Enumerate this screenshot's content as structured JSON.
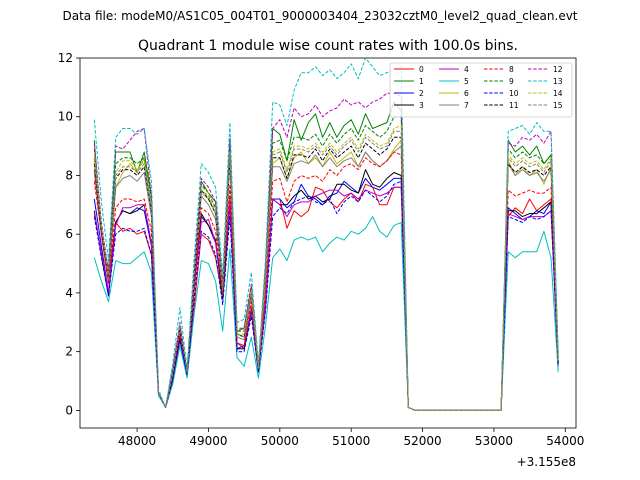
{
  "suptitle": "Data file: modeM0/AS1C05_004T01_9000003404_23032cztM0_level2_quad_clean.evt",
  "chart_data": {
    "type": "line",
    "title": "Quadrant 1 module wise count rates with 100.0s bins.",
    "xlabel": "",
    "ylabel": "",
    "x_offset_label": "+3.155e8",
    "xlim": [
      47200,
      54150
    ],
    "ylim": [
      -0.6,
      12.0
    ],
    "x_ticks": [
      48000,
      49000,
      50000,
      51000,
      52000,
      53000,
      54000
    ],
    "x_tick_labels": [
      "48000",
      "49000",
      "50000",
      "51000",
      "52000",
      "53000",
      "54000"
    ],
    "y_ticks": [
      0,
      2,
      4,
      6,
      8,
      10,
      12
    ],
    "y_tick_labels": [
      "0",
      "2",
      "4",
      "6",
      "8",
      "10",
      "12"
    ],
    "grid": false,
    "legend_position": "top-right",
    "legend_columns": 4,
    "x": [
      47400,
      47500,
      47600,
      47700,
      47800,
      47900,
      48000,
      48100,
      48200,
      48300,
      48400,
      48500,
      48600,
      48700,
      48800,
      48900,
      49000,
      49100,
      49200,
      49300,
      49400,
      49500,
      49600,
      49700,
      49800,
      49900,
      50000,
      50100,
      50200,
      50300,
      50400,
      50500,
      50600,
      50700,
      50800,
      50900,
      51000,
      51100,
      51200,
      51300,
      51400,
      51500,
      51600,
      51700,
      51800,
      51900,
      52000,
      52100,
      52200,
      52300,
      52400,
      52500,
      52600,
      52700,
      52800,
      52900,
      53000,
      53100,
      53200,
      53300,
      53400,
      53500,
      53600,
      53700,
      53800,
      53900
    ],
    "series": [
      {
        "name": "0",
        "color": "#ff0000",
        "dash": false,
        "values": [
          8.1,
          6.0,
          4.4,
          6.4,
          6.1,
          6.2,
          6.0,
          6.1,
          5.3,
          0.6,
          0.1,
          1.0,
          2.4,
          1.3,
          3.5,
          6.0,
          5.8,
          5.2,
          3.8,
          7.3,
          2.3,
          2.1,
          3.4,
          1.4,
          3.5,
          7.2,
          7.2,
          6.2,
          6.8,
          6.6,
          6.8,
          7.6,
          7.5,
          7.1,
          6.9,
          7.2,
          7.4,
          7.1,
          7.7,
          7.6,
          7.0,
          7.0,
          7.6,
          7.6,
          0.1,
          0,
          0,
          0,
          0,
          0,
          0,
          0,
          0,
          0,
          0,
          0,
          0,
          0,
          6.6,
          6.9,
          6.7,
          7.2,
          6.8,
          7.0,
          7.2,
          1.5
        ]
      },
      {
        "name": "1",
        "color": "#008000",
        "dash": false,
        "values": [
          9.2,
          6.0,
          4.8,
          8.8,
          8.8,
          8.8,
          8.1,
          8.8,
          7.3,
          0.6,
          0.1,
          1.4,
          2.9,
          1.3,
          4.7,
          7.8,
          7.4,
          7.1,
          4.2,
          9.2,
          2.7,
          2.8,
          4.2,
          1.5,
          4.9,
          9.6,
          9.4,
          8.5,
          9.9,
          9.2,
          9.8,
          10.1,
          9.3,
          9.8,
          9.3,
          9.7,
          9.9,
          9.4,
          10.1,
          9.6,
          9.7,
          9.8,
          10.5,
          10.2,
          0.1,
          0,
          0,
          0,
          0,
          0,
          0,
          0,
          0,
          0,
          0,
          0,
          0,
          0,
          9.2,
          8.8,
          9.0,
          8.7,
          9.0,
          8.4,
          8.7,
          1.8
        ]
      },
      {
        "name": "2",
        "color": "#0000ff",
        "dash": false,
        "values": [
          7.2,
          5.6,
          4.0,
          6.4,
          6.8,
          6.7,
          6.9,
          6.8,
          5.6,
          0.6,
          0.1,
          1.2,
          2.4,
          1.2,
          4.1,
          6.6,
          6.3,
          5.7,
          3.9,
          7.1,
          2.1,
          2.2,
          3.5,
          1.4,
          3.7,
          7.2,
          7.2,
          6.9,
          7.1,
          7.7,
          7.3,
          7.2,
          7.0,
          7.3,
          7.4,
          7.8,
          7.6,
          7.4,
          7.9,
          7.6,
          7.5,
          7.7,
          7.9,
          7.9,
          0.1,
          0,
          0,
          0,
          0,
          0,
          0,
          0,
          0,
          0,
          0,
          0,
          0,
          0,
          6.9,
          6.7,
          6.5,
          6.6,
          6.8,
          6.7,
          7.1,
          1.6
        ]
      },
      {
        "name": "3",
        "color": "#000000",
        "dash": false,
        "values": [
          6.8,
          5.3,
          3.9,
          6.4,
          6.8,
          6.7,
          6.8,
          7.0,
          5.7,
          0.6,
          0.1,
          1.1,
          2.5,
          1.2,
          4.2,
          6.7,
          6.3,
          5.8,
          3.8,
          7.0,
          2.1,
          2.1,
          3.4,
          1.3,
          3.8,
          7.2,
          7.0,
          7.0,
          7.3,
          7.5,
          7.2,
          7.3,
          7.1,
          7.2,
          7.7,
          7.7,
          7.5,
          7.4,
          8.2,
          7.7,
          7.6,
          7.9,
          8.1,
          8.0,
          0.1,
          0,
          0,
          0,
          0,
          0,
          0,
          0,
          0,
          0,
          0,
          0,
          0,
          0,
          6.8,
          6.8,
          6.6,
          6.7,
          6.7,
          6.9,
          7.1,
          1.6
        ]
      },
      {
        "name": "4",
        "color": "#bf00bf",
        "dash": false,
        "values": [
          6.7,
          5.4,
          4.0,
          6.3,
          6.9,
          6.9,
          7.0,
          7.0,
          5.7,
          0.6,
          0.1,
          1.2,
          2.6,
          1.2,
          4.2,
          6.4,
          6.5,
          5.7,
          4.2,
          7.1,
          2.3,
          2.2,
          3.5,
          1.4,
          3.7,
          7.2,
          7.0,
          6.6,
          7.0,
          7.1,
          7.1,
          7.3,
          7.4,
          7.5,
          7.5,
          7.3,
          7.4,
          7.2,
          7.5,
          7.4,
          7.3,
          7.4,
          7.6,
          7.6,
          0.1,
          0,
          0,
          0,
          0,
          0,
          0,
          0,
          0,
          0,
          0,
          0,
          0,
          0,
          6.7,
          6.6,
          6.5,
          6.6,
          6.6,
          6.6,
          6.8,
          1.6
        ]
      },
      {
        "name": "5",
        "color": "#00bfbf",
        "dash": false,
        "values": [
          5.2,
          4.4,
          3.7,
          5.1,
          5.0,
          5.0,
          5.2,
          5.4,
          4.7,
          0.5,
          0.1,
          0.9,
          2.2,
          1.1,
          3.3,
          5.1,
          5.0,
          4.4,
          2.7,
          5.5,
          1.8,
          1.5,
          2.5,
          1.1,
          2.9,
          5.2,
          5.5,
          5.1,
          5.8,
          5.9,
          5.8,
          5.9,
          5.4,
          5.7,
          5.9,
          5.8,
          6.1,
          6.0,
          6.2,
          6.6,
          6.1,
          5.9,
          6.3,
          6.4,
          0.1,
          0,
          0,
          0,
          0,
          0,
          0,
          0,
          0,
          0,
          0,
          0,
          0,
          0,
          5.4,
          5.2,
          5.4,
          5.4,
          5.4,
          6.1,
          5.2,
          1.3
        ]
      },
      {
        "name": "6",
        "color": "#bfbf00",
        "dash": false,
        "values": [
          8.5,
          6.1,
          4.4,
          7.6,
          8.1,
          8.4,
          8.1,
          8.6,
          6.8,
          0.6,
          0.1,
          1.3,
          2.9,
          1.3,
          4.6,
          7.4,
          7.2,
          6.7,
          4.0,
          8.7,
          2.6,
          2.5,
          4.0,
          1.5,
          4.5,
          8.4,
          8.6,
          7.9,
          8.6,
          8.8,
          8.4,
          8.6,
          8.3,
          8.8,
          8.4,
          8.6,
          8.8,
          8.3,
          8.8,
          8.5,
          8.3,
          8.5,
          8.9,
          9.2,
          0.1,
          0,
          0,
          0,
          0,
          0,
          0,
          0,
          0,
          0,
          0,
          0,
          0,
          0,
          8.5,
          8.0,
          8.3,
          8.0,
          8.2,
          7.7,
          8.3,
          1.7
        ]
      },
      {
        "name": "7",
        "color": "#808080",
        "dash": false,
        "values": [
          8.2,
          6.0,
          4.3,
          7.6,
          7.9,
          8.0,
          7.8,
          8.1,
          6.6,
          0.6,
          0.1,
          1.3,
          2.8,
          1.3,
          4.5,
          7.3,
          7.0,
          6.5,
          4.1,
          8.4,
          2.5,
          2.4,
          3.9,
          1.4,
          4.3,
          8.3,
          8.3,
          7.8,
          8.4,
          8.5,
          8.4,
          8.7,
          8.3,
          8.6,
          8.3,
          8.5,
          8.6,
          8.3,
          8.8,
          8.5,
          8.3,
          8.5,
          8.8,
          9.0,
          0.1,
          0,
          0,
          0,
          0,
          0,
          0,
          0,
          0,
          0,
          0,
          0,
          0,
          0,
          8.4,
          8.0,
          8.2,
          8.0,
          8.1,
          7.8,
          8.2,
          1.7
        ]
      },
      {
        "name": "8",
        "color": "#ff0000",
        "dash": true,
        "values": [
          7.8,
          6.0,
          4.3,
          6.9,
          7.2,
          7.2,
          7.1,
          7.2,
          6.1,
          0.6,
          0.1,
          1.2,
          2.6,
          1.3,
          4.2,
          6.9,
          6.7,
          6.1,
          3.9,
          7.7,
          2.3,
          2.2,
          3.7,
          1.4,
          4.0,
          7.8,
          7.9,
          7.1,
          7.8,
          8.0,
          7.9,
          8.0,
          7.8,
          8.2,
          8.0,
          8.3,
          8.4,
          8.2,
          8.6,
          8.4,
          8.3,
          8.5,
          8.8,
          8.7,
          0.1,
          0,
          0,
          0,
          0,
          0,
          0,
          0,
          0,
          0,
          0,
          0,
          0,
          0,
          7.5,
          7.3,
          7.4,
          7.5,
          7.4,
          7.4,
          7.6,
          1.6
        ]
      },
      {
        "name": "9",
        "color": "#008000",
        "dash": true,
        "values": [
          8.9,
          6.3,
          4.6,
          8.4,
          8.6,
          8.6,
          8.4,
          8.6,
          7.1,
          0.6,
          0.1,
          1.4,
          2.9,
          1.3,
          4.7,
          7.7,
          7.4,
          6.9,
          4.2,
          9.0,
          2.7,
          2.7,
          4.2,
          1.5,
          4.7,
          9.1,
          9.2,
          8.5,
          9.3,
          9.3,
          9.2,
          9.4,
          9.0,
          9.4,
          9.1,
          9.4,
          9.6,
          9.2,
          9.7,
          9.5,
          9.3,
          9.5,
          10.0,
          10.0,
          0.1,
          0,
          0,
          0,
          0,
          0,
          0,
          0,
          0,
          0,
          0,
          0,
          0,
          0,
          8.9,
          8.6,
          8.8,
          8.6,
          8.7,
          8.4,
          8.7,
          1.8
        ]
      },
      {
        "name": "10",
        "color": "#0000ff",
        "dash": true,
        "values": [
          6.6,
          5.2,
          3.9,
          6.0,
          6.2,
          6.1,
          6.1,
          6.2,
          5.3,
          0.6,
          0.1,
          1.1,
          2.4,
          1.2,
          3.8,
          6.1,
          5.9,
          5.3,
          3.6,
          6.6,
          2.0,
          2.0,
          3.2,
          1.3,
          3.4,
          6.6,
          6.9,
          6.7,
          7.1,
          7.2,
          7.3,
          7.1,
          7.0,
          7.2,
          6.7,
          7.1,
          7.3,
          7.1,
          7.5,
          7.3,
          7.1,
          7.3,
          7.7,
          7.8,
          0.1,
          0,
          0,
          0,
          0,
          0,
          0,
          0,
          0,
          0,
          0,
          0,
          0,
          0,
          6.6,
          6.5,
          6.4,
          6.6,
          6.5,
          6.6,
          6.8,
          1.5
        ]
      },
      {
        "name": "11",
        "color": "#000000",
        "dash": true,
        "values": [
          8.4,
          6.1,
          4.5,
          7.9,
          8.2,
          8.2,
          8.0,
          8.3,
          6.8,
          0.6,
          0.1,
          1.3,
          2.8,
          1.3,
          4.5,
          7.5,
          7.2,
          6.7,
          4.1,
          8.6,
          2.6,
          2.5,
          4.0,
          1.4,
          4.5,
          8.6,
          8.6,
          7.9,
          8.7,
          8.7,
          8.6,
          8.9,
          8.5,
          8.9,
          8.6,
          8.8,
          9.0,
          8.6,
          9.1,
          8.9,
          8.7,
          8.9,
          9.3,
          9.3,
          0.1,
          0,
          0,
          0,
          0,
          0,
          0,
          0,
          0,
          0,
          0,
          0,
          0,
          0,
          8.4,
          8.1,
          8.3,
          8.1,
          8.2,
          8.0,
          8.3,
          1.7
        ]
      },
      {
        "name": "12",
        "color": "#bf00bf",
        "dash": true,
        "values": [
          9.1,
          6.4,
          4.7,
          9.0,
          8.9,
          9.2,
          9.5,
          9.6,
          7.3,
          0.6,
          0.1,
          1.4,
          3.0,
          1.3,
          4.8,
          7.9,
          7.6,
          7.1,
          4.3,
          9.3,
          2.8,
          2.8,
          4.3,
          1.5,
          4.9,
          9.6,
          9.9,
          9.3,
          10.3,
          10.0,
          10.1,
          10.4,
          10.0,
          10.2,
          10.3,
          10.6,
          10.4,
          10.5,
          10.3,
          10.5,
          10.6,
          10.8,
          10.8,
          10.7,
          0.1,
          0,
          0,
          0,
          0,
          0,
          0,
          0,
          0,
          0,
          0,
          0,
          0,
          0,
          9.1,
          9.0,
          9.3,
          9.2,
          9.4,
          9.1,
          9.5,
          1.9
        ]
      },
      {
        "name": "13",
        "color": "#00bfbf",
        "dash": true,
        "values": [
          9.9,
          7.1,
          5.1,
          9.3,
          9.6,
          9.6,
          9.4,
          9.6,
          7.8,
          0.7,
          0.1,
          1.6,
          3.5,
          1.4,
          5.2,
          8.4,
          8.1,
          7.6,
          4.6,
          9.8,
          3.0,
          3.1,
          4.7,
          1.6,
          5.2,
          10.5,
          10.4,
          9.7,
          10.9,
          11.5,
          11.5,
          11.7,
          11.4,
          11.6,
          11.3,
          11.5,
          11.8,
          11.3,
          12.0,
          11.7,
          11.4,
          11.5,
          11.6,
          11.7,
          0.1,
          0,
          0,
          0,
          0,
          0,
          0,
          0,
          0,
          0,
          0,
          0,
          0,
          0,
          9.5,
          9.6,
          9.7,
          9.4,
          9.8,
          9.5,
          9.5,
          2.0
        ]
      },
      {
        "name": "14",
        "color": "#bfbf00",
        "dash": true,
        "values": [
          8.8,
          6.3,
          4.6,
          8.1,
          8.5,
          8.5,
          8.2,
          8.5,
          7.0,
          0.6,
          0.1,
          1.3,
          2.9,
          1.3,
          4.6,
          7.6,
          7.4,
          6.8,
          4.1,
          8.8,
          2.6,
          2.6,
          4.1,
          1.5,
          4.6,
          8.8,
          8.9,
          8.2,
          9.0,
          9.0,
          8.9,
          9.1,
          8.8,
          9.1,
          8.8,
          9.1,
          9.3,
          8.9,
          9.4,
          9.2,
          9.0,
          9.1,
          9.6,
          9.7,
          0.1,
          0,
          0,
          0,
          0,
          0,
          0,
          0,
          0,
          0,
          0,
          0,
          0,
          0,
          8.7,
          8.4,
          8.6,
          8.4,
          8.5,
          8.2,
          8.6,
          1.7
        ]
      },
      {
        "name": "15",
        "color": "#808080",
        "dash": true,
        "values": [
          8.6,
          6.2,
          4.5,
          8.0,
          8.3,
          8.3,
          8.1,
          8.4,
          6.9,
          0.6,
          0.1,
          1.3,
          2.9,
          1.3,
          4.6,
          7.5,
          7.3,
          6.7,
          4.1,
          8.7,
          2.6,
          2.5,
          4.0,
          1.4,
          4.5,
          8.7,
          8.8,
          8.1,
          8.9,
          8.9,
          8.8,
          9.0,
          8.7,
          9.0,
          8.7,
          9.0,
          9.2,
          8.8,
          9.3,
          9.1,
          8.9,
          9.0,
          9.5,
          9.5,
          0.1,
          0,
          0,
          0,
          0,
          0,
          0,
          0,
          0,
          0,
          0,
          0,
          0,
          0,
          8.6,
          8.3,
          8.5,
          8.3,
          8.4,
          8.1,
          8.5,
          1.7
        ]
      }
    ]
  }
}
